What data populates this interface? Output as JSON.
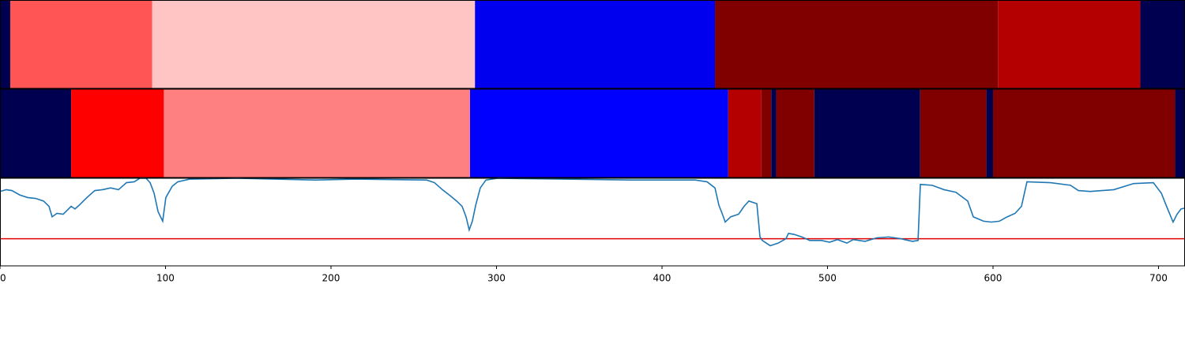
{
  "chart_data": {
    "type": "segmentation",
    "xlim": [
      0,
      716
    ],
    "xticks": [
      0,
      100,
      200,
      300,
      400,
      500,
      600,
      700
    ],
    "rows": [
      {
        "segments": [
          {
            "start": 0,
            "end": 6.2,
            "color": "#000050"
          },
          {
            "start": 6.2,
            "end": 92,
            "color": "#ff5555"
          },
          {
            "start": 92,
            "end": 287,
            "color": "#ffc4c4"
          },
          {
            "start": 287,
            "end": 432,
            "color": "#0000ee"
          },
          {
            "start": 432,
            "end": 603,
            "color": "#800000"
          },
          {
            "start": 603,
            "end": 689,
            "color": "#b40000"
          },
          {
            "start": 689,
            "end": 716,
            "color": "#000050"
          }
        ]
      },
      {
        "segments": [
          {
            "start": 0,
            "end": 43,
            "color": "#000050"
          },
          {
            "start": 43,
            "end": 99,
            "color": "#ff0000"
          },
          {
            "start": 99,
            "end": 284,
            "color": "#ff8080"
          },
          {
            "start": 284,
            "end": 440,
            "color": "#0000ff"
          },
          {
            "start": 440,
            "end": 460,
            "color": "#b40000"
          },
          {
            "start": 460,
            "end": 466,
            "color": "#800000"
          },
          {
            "start": 466,
            "end": 469,
            "color": "#000050"
          },
          {
            "start": 469,
            "end": 492,
            "color": "#800000"
          },
          {
            "start": 492,
            "end": 556,
            "color": "#000050"
          },
          {
            "start": 556,
            "end": 596,
            "color": "#800000"
          },
          {
            "start": 596,
            "end": 600,
            "color": "#000050"
          },
          {
            "start": 600,
            "end": 710,
            "color": "#800000"
          },
          {
            "start": 710,
            "end": 716,
            "color": "#000050"
          }
        ]
      }
    ],
    "line": {
      "color": "#1f77b4",
      "ylim": [
        0,
        1
      ],
      "x": [
        0,
        3.8,
        7.2,
        11.9,
        16.7,
        21.5,
        26.3,
        29.6,
        31.5,
        34.4,
        38.2,
        43,
        45.3,
        47.7,
        52.5,
        57.3,
        62,
        66.8,
        71.6,
        76.4,
        81.1,
        84.5,
        88.3,
        90.7,
        93.1,
        95.5,
        98.3,
        100.2,
        104.1,
        107.4,
        114.6,
        143.2,
        190.9,
        214.8,
        257.8,
        262.5,
        267.3,
        272.1,
        275.9,
        279.2,
        281.6,
        283.5,
        285.4,
        287.4,
        290.2,
        293.6,
        300.7,
        381.9,
        420,
        427.2,
        432,
        434.4,
        436.3,
        438.2,
        441.5,
        446.3,
        449.6,
        452.5,
        457.3,
        459.2,
        460.6,
        465.4,
        470.2,
        474.9,
        476.4,
        479.7,
        484.5,
        489.3,
        496.4,
        501.2,
        506,
        511.7,
        515.5,
        522.7,
        529.8,
        537,
        544.2,
        551.3,
        554.7,
        556.1,
        563.2,
        570.4,
        577.6,
        584.7,
        588.1,
        594.3,
        599,
        603.8,
        608.6,
        613.4,
        617.2,
        620.5,
        634.8,
        646.8,
        651.6,
        658.7,
        673,
        685,
        696.9,
        701.7,
        705.5,
        708.8,
        711.2,
        713.6,
        716
      ],
      "values": [
        0.85,
        0.87,
        0.86,
        0.81,
        0.78,
        0.77,
        0.74,
        0.68,
        0.56,
        0.6,
        0.59,
        0.68,
        0.65,
        0.69,
        0.78,
        0.86,
        0.87,
        0.89,
        0.87,
        0.95,
        0.96,
        1,
        1,
        0.95,
        0.83,
        0.62,
        0.51,
        0.78,
        0.91,
        0.96,
        0.99,
        1,
        0.98,
        0.99,
        0.98,
        0.95,
        0.87,
        0.8,
        0.74,
        0.68,
        0.56,
        0.41,
        0.51,
        0.69,
        0.89,
        0.98,
        1,
        0.98,
        0.98,
        0.96,
        0.89,
        0.69,
        0.6,
        0.5,
        0.56,
        0.59,
        0.68,
        0.74,
        0.71,
        0.33,
        0.29,
        0.23,
        0.26,
        0.31,
        0.37,
        0.36,
        0.33,
        0.29,
        0.29,
        0.27,
        0.3,
        0.26,
        0.3,
        0.28,
        0.32,
        0.33,
        0.31,
        0.28,
        0.29,
        0.93,
        0.92,
        0.87,
        0.84,
        0.74,
        0.56,
        0.51,
        0.5,
        0.51,
        0.56,
        0.6,
        0.68,
        0.96,
        0.95,
        0.92,
        0.86,
        0.85,
        0.87,
        0.94,
        0.95,
        0.83,
        0.65,
        0.5,
        0.59,
        0.65,
        0.66
      ]
    },
    "hline": {
      "value": 0.31,
      "color": "#e00000"
    }
  }
}
